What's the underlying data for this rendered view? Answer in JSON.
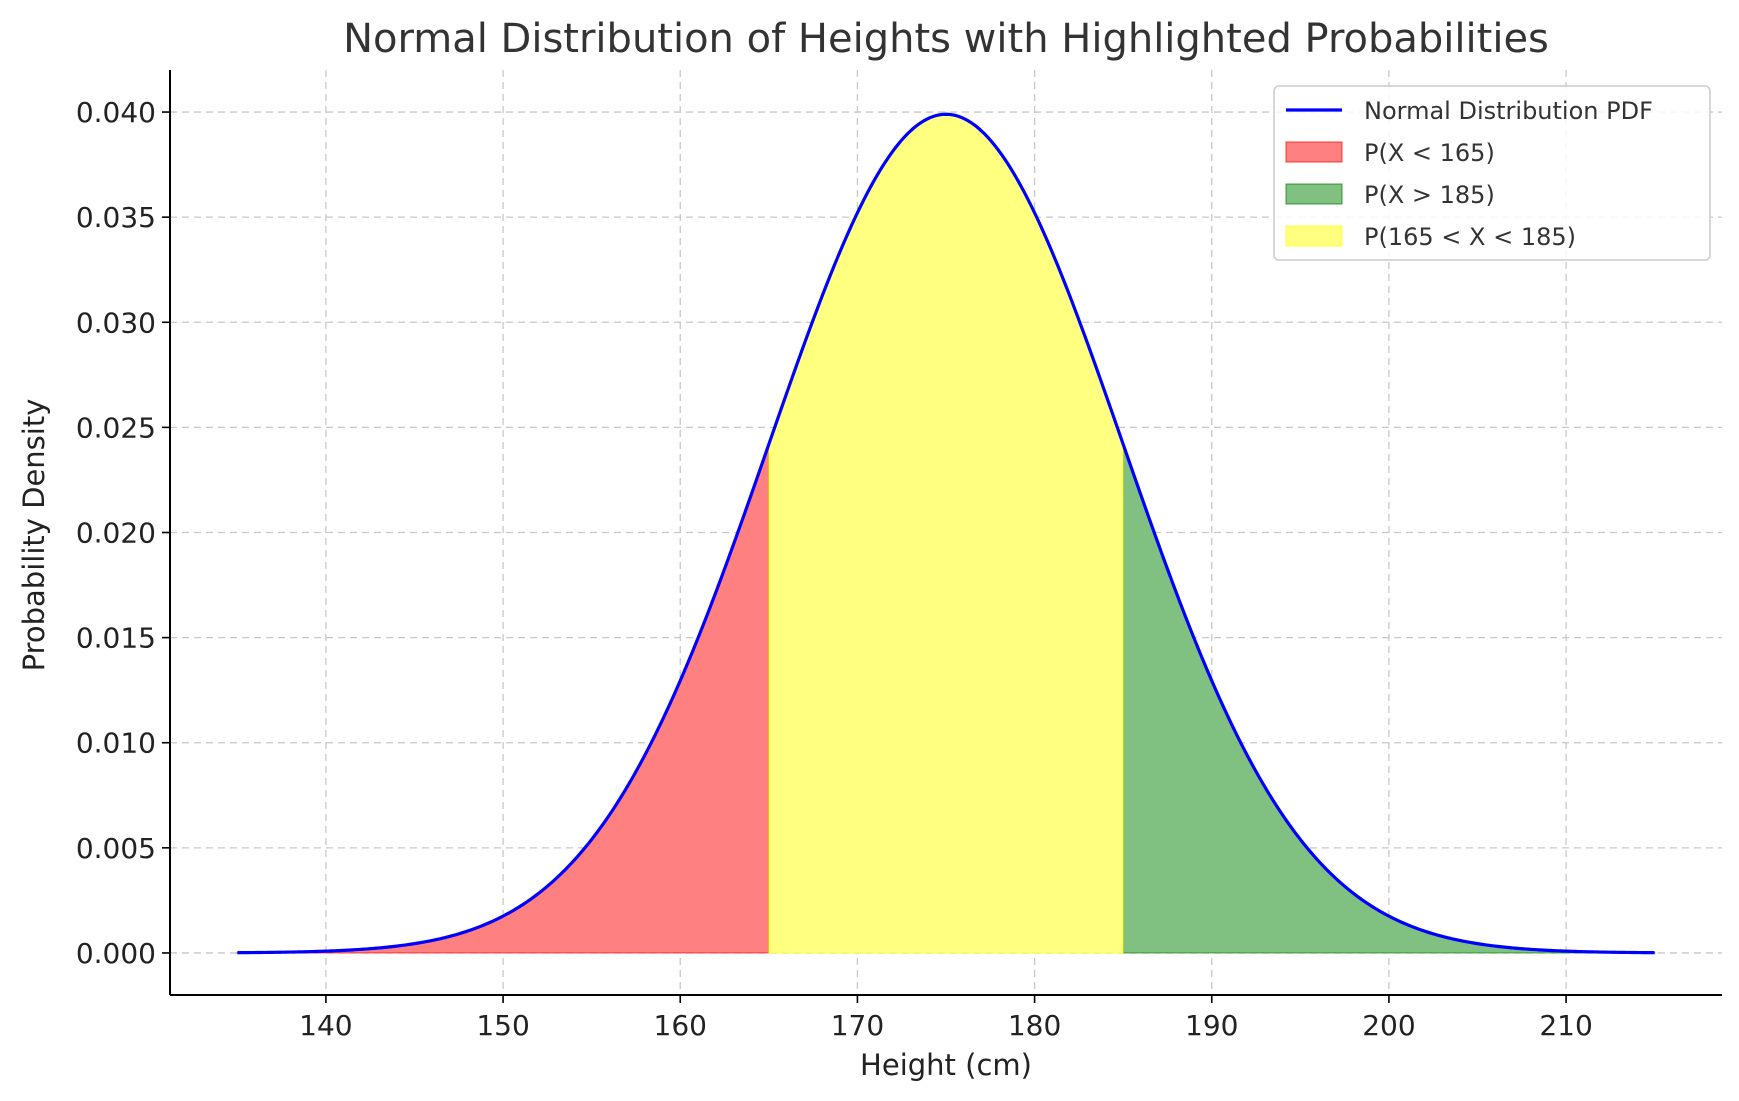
{
  "chart_data": {
    "type": "area",
    "title": "Normal Distribution of Heights with Highlighted Probabilities",
    "xlabel": "Height (cm)",
    "ylabel": "Probability Density",
    "distribution": {
      "mean": 175,
      "std": 10
    },
    "x_range": [
      135,
      215
    ],
    "xlim": [
      131.2,
      218.8
    ],
    "ylim": [
      -0.002,
      0.042
    ],
    "x_ticks": [
      140,
      150,
      160,
      170,
      180,
      190,
      200,
      210
    ],
    "y_ticks": [
      0.0,
      0.005,
      0.01,
      0.015,
      0.02,
      0.025,
      0.03,
      0.035,
      0.04
    ],
    "x_tick_labels": [
      "140",
      "150",
      "160",
      "170",
      "180",
      "190",
      "200",
      "210"
    ],
    "y_tick_labels": [
      "0.000",
      "0.005",
      "0.010",
      "0.015",
      "0.020",
      "0.025",
      "0.030",
      "0.035",
      "0.040"
    ],
    "grid": true,
    "legend_position": "top-right",
    "series": [
      {
        "name": "Normal Distribution PDF",
        "kind": "line",
        "color": "#0000ff"
      }
    ],
    "regions": [
      {
        "name": "P(X < 165)",
        "from": 135,
        "to": 165,
        "fill": "#ff8080",
        "edge": "#ff0000"
      },
      {
        "name": "P(X > 185)",
        "from": 185,
        "to": 215,
        "fill": "#80c080",
        "edge": "#008000"
      },
      {
        "name": "P(165 < X < 185)",
        "from": 165,
        "to": 185,
        "fill": "#ffff80",
        "edge": "#ffff00"
      }
    ]
  }
}
